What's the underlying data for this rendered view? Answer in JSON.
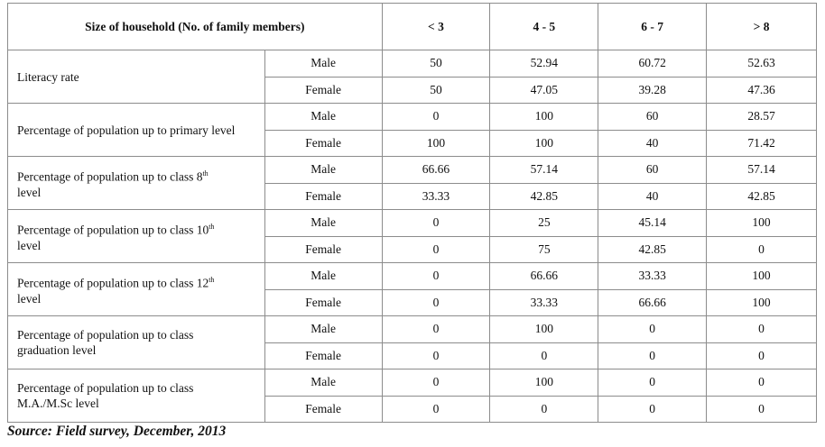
{
  "table": {
    "header": {
      "label": "Size of household (No. of family members)",
      "columns": [
        "< 3",
        "4 - 5",
        "6 - 7",
        "> 8"
      ]
    },
    "groups": [
      {
        "label": "Literacy rate",
        "rows": [
          {
            "gender": "Male",
            "values": [
              50,
              52.94,
              60.72,
              52.63
            ]
          },
          {
            "gender": "Female",
            "values": [
              50,
              47.05,
              39.28,
              47.36
            ]
          }
        ]
      },
      {
        "label": "Percentage of population up to primary level",
        "rows": [
          {
            "gender": "Male",
            "values": [
              0,
              100,
              60,
              28.57
            ]
          },
          {
            "gender": "Female",
            "values": [
              100,
              100,
              40,
              71.42
            ]
          }
        ]
      },
      {
        "label": "Percentage of population up to class 8",
        "label_sup": "th",
        "label_tail": "level",
        "rows": [
          {
            "gender": "Male",
            "values": [
              66.66,
              57.14,
              60,
              57.14
            ]
          },
          {
            "gender": "Female",
            "values": [
              33.33,
              42.85,
              40,
              42.85
            ]
          }
        ]
      },
      {
        "label": "Percentage of population up to class 10",
        "label_sup": "th",
        "label_tail": "level",
        "rows": [
          {
            "gender": "Male",
            "values": [
              0,
              25,
              45.14,
              100
            ]
          },
          {
            "gender": "Female",
            "values": [
              0,
              75,
              42.85,
              0
            ]
          }
        ]
      },
      {
        "label": "Percentage of population up to class 12",
        "label_sup": "th",
        "label_tail": "level",
        "rows": [
          {
            "gender": "Male",
            "values": [
              0,
              66.66,
              33.33,
              100
            ]
          },
          {
            "gender": "Female",
            "values": [
              0,
              33.33,
              66.66,
              100
            ]
          }
        ]
      },
      {
        "label": "Percentage of population up to class graduation level",
        "rows": [
          {
            "gender": "Male",
            "values": [
              0,
              100,
              0,
              0
            ]
          },
          {
            "gender": "Female",
            "values": [
              0,
              0,
              0,
              0
            ]
          }
        ]
      },
      {
        "label": "Percentage of population up to class M.A./M.Sc level",
        "rows": [
          {
            "gender": "Male",
            "values": [
              0,
              100,
              0,
              0
            ]
          },
          {
            "gender": "Female",
            "values": [
              0,
              0,
              0,
              0
            ]
          }
        ]
      }
    ]
  },
  "source": "Source: Field survey, December, 2013"
}
